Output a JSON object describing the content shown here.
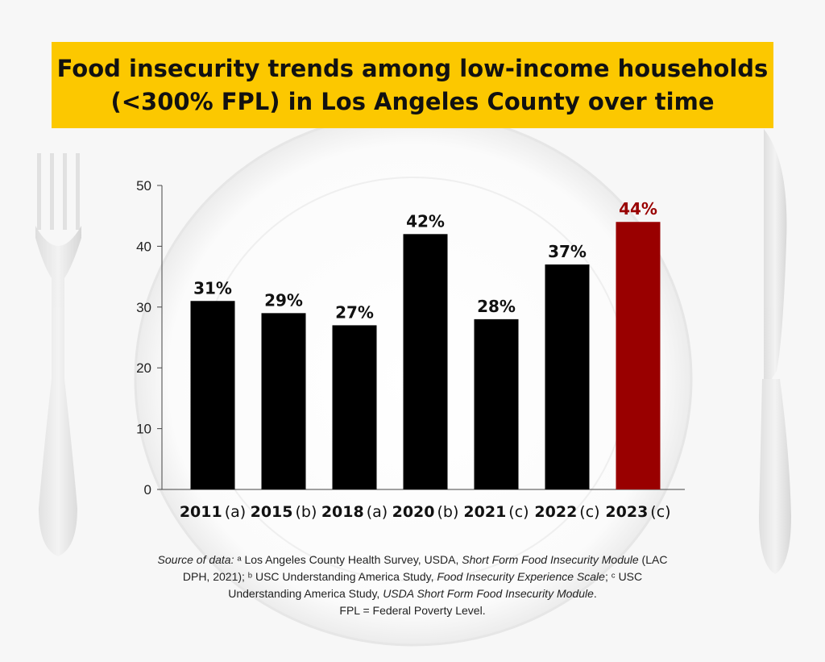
{
  "title": {
    "line1": "Food insecurity trends among low-income households",
    "line2": "(<300% FPL) in Los Angeles County over time"
  },
  "colors": {
    "title_band": "#fcc800",
    "bar_default": "#000000",
    "bar_highlight": "#990000",
    "label_highlight": "#990000"
  },
  "chart_data": {
    "type": "bar",
    "title": "Food insecurity trends among low-income households (<300% FPL) in Los Angeles County over time",
    "categories": [
      "2011",
      "2015",
      "2018",
      "2020",
      "2021",
      "2022",
      "2023"
    ],
    "category_notes": [
      "(a)",
      "(b)",
      "(a)",
      "(b)",
      "(c)",
      "(c)",
      "(c)"
    ],
    "values": [
      31,
      29,
      27,
      42,
      28,
      37,
      44
    ],
    "data_labels": [
      "31%",
      "29%",
      "27%",
      "42%",
      "28%",
      "37%",
      "44%"
    ],
    "highlight": [
      "2023"
    ],
    "yticks": [
      "0",
      "10",
      "20",
      "30",
      "40",
      "50"
    ],
    "ylim": [
      0,
      50
    ],
    "xlabel": "",
    "ylabel": "",
    "grid": false,
    "legend": "none"
  },
  "source_note": {
    "s1": "Source of data: ",
    "s2": "ᵃ Los Angeles County Health Survey, USDA, ",
    "s3": "Short Form Food Insecurity Module",
    "s4": " (LAC DPH, 2021); ᵇ USC Understanding America Study, ",
    "s5": "Food Insecurity Experience Scale",
    "s6": "; ᶜ USC Understanding America Study, ",
    "s7": "USDA Short Form Food Insecurity Module",
    "s8": ".",
    "s9": "FPL = Federal Poverty Level."
  }
}
